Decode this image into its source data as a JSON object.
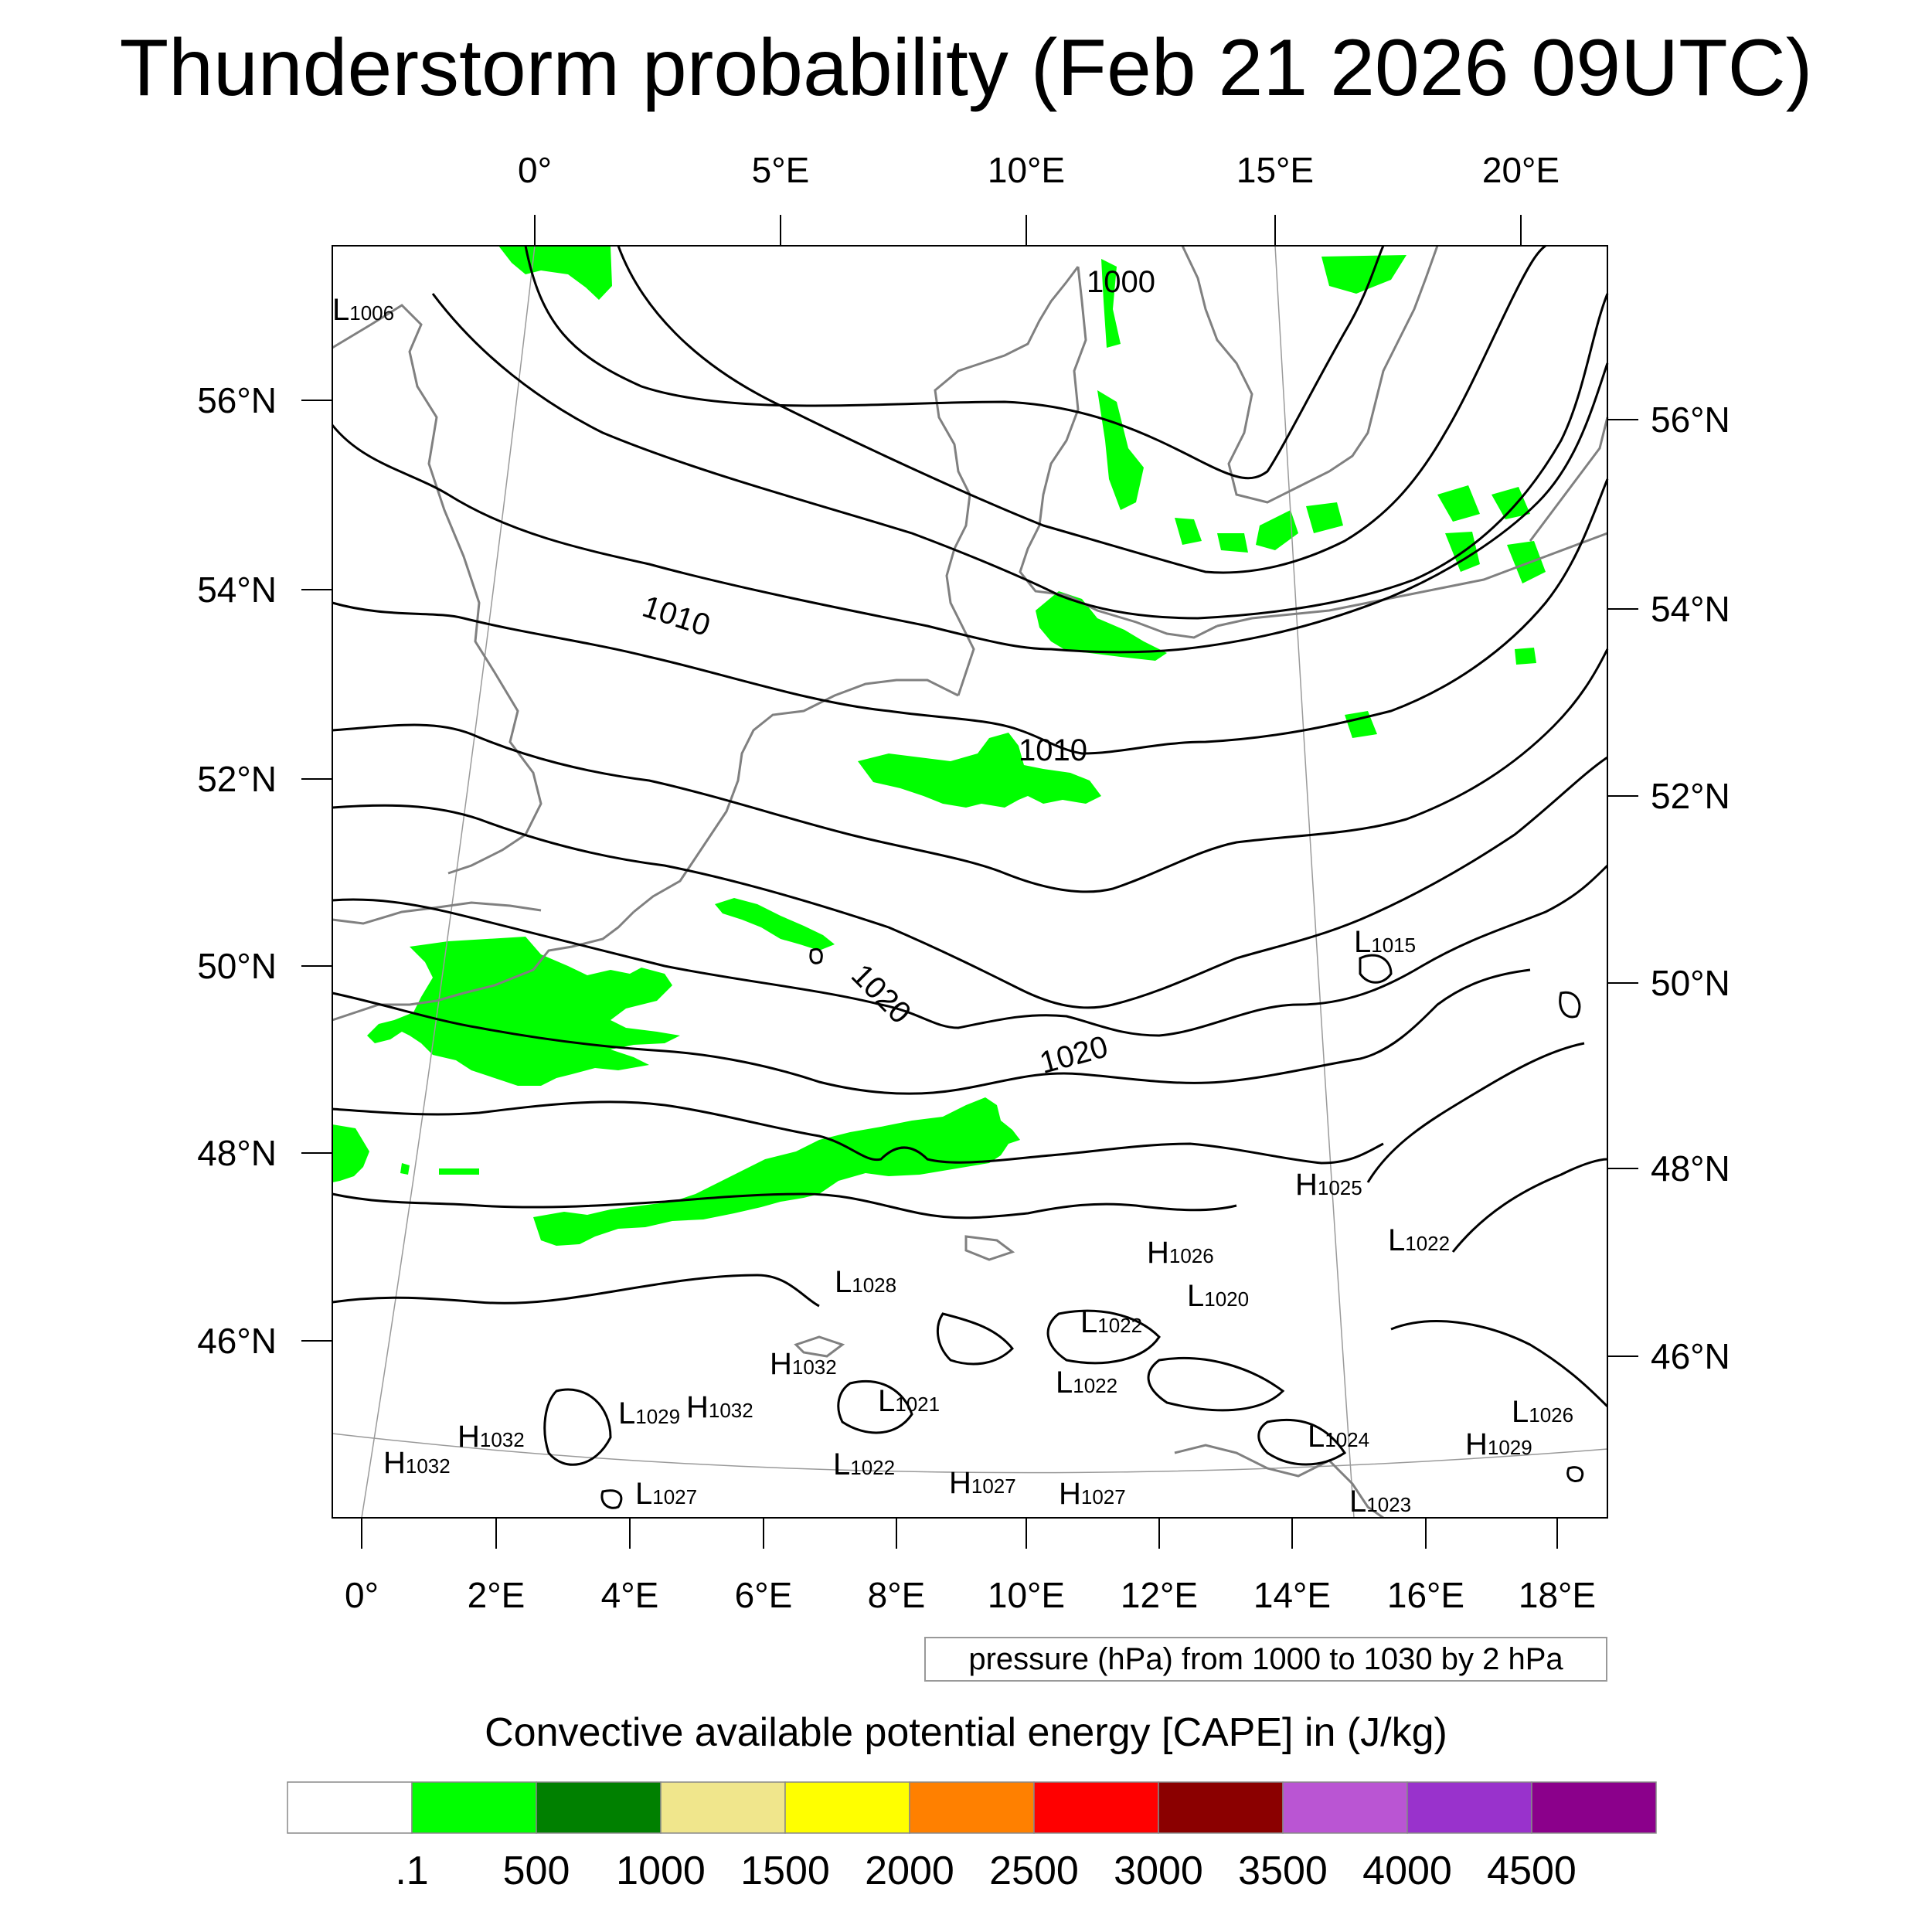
{
  "title": "Thunderstorm probability (Feb 21 2026 09UTC)",
  "axes": {
    "top_lon_labels": [
      "0°",
      "5°E",
      "10°E",
      "15°E",
      "20°E"
    ],
    "bottom_lon_labels": [
      "0°",
      "2°E",
      "4°E",
      "6°E",
      "8°E",
      "10°E",
      "12°E",
      "14°E",
      "16°E",
      "18°E"
    ],
    "left_lat_labels": [
      "56°N",
      "54°N",
      "52°N",
      "50°N",
      "48°N",
      "46°N"
    ],
    "right_lat_labels": [
      "56°N",
      "54°N",
      "52°N",
      "50°N",
      "48°N",
      "46°N"
    ]
  },
  "isobar_labels": [
    "1000",
    "1010",
    "1010",
    "1020",
    "1020"
  ],
  "pressure_centers": [
    {
      "type": "L",
      "value": "1006"
    },
    {
      "type": "L",
      "value": "1015"
    },
    {
      "type": "H",
      "value": "1025"
    },
    {
      "type": "L",
      "value": "1022"
    },
    {
      "type": "H",
      "value": "1026"
    },
    {
      "type": "L",
      "value": "1020"
    },
    {
      "type": "L",
      "value": "1028"
    },
    {
      "type": "L",
      "value": "1022"
    },
    {
      "type": "H",
      "value": "1032"
    },
    {
      "type": "L",
      "value": "1022"
    },
    {
      "type": "L",
      "value": "1021"
    },
    {
      "type": "L",
      "value": "1029"
    },
    {
      "type": "H",
      "value": "1032"
    },
    {
      "type": "H",
      "value": "1032"
    },
    {
      "type": "H",
      "value": "1032"
    },
    {
      "type": "L",
      "value": "1022"
    },
    {
      "type": "L",
      "value": "1027"
    },
    {
      "type": "H",
      "value": "1027"
    },
    {
      "type": "H",
      "value": "1027"
    },
    {
      "type": "L",
      "value": "1024"
    },
    {
      "type": "L",
      "value": "1026"
    },
    {
      "type": "H",
      "value": "1029"
    },
    {
      "type": "L",
      "value": "1023"
    }
  ],
  "info_box": "pressure (hPa) from 1000 to 1030 by 2 hPa",
  "colorbar": {
    "title": "Convective available potential energy [CAPE] in (J/kg)",
    "colors": [
      "#ffffff",
      "#00ff00",
      "#008000",
      "#f0e68c",
      "#ffff00",
      "#ff8000",
      "#ff0000",
      "#8b0000",
      "#ba55d3",
      "#9932cc",
      "#8b008b"
    ],
    "labels": [
      ".1",
      "500",
      "1000",
      "1500",
      "2000",
      "2500",
      "3000",
      "3500",
      "4000",
      "4500"
    ]
  },
  "colors": {
    "cape_green": "#00ff00",
    "isobar": "#000000",
    "coast": "#808080"
  }
}
